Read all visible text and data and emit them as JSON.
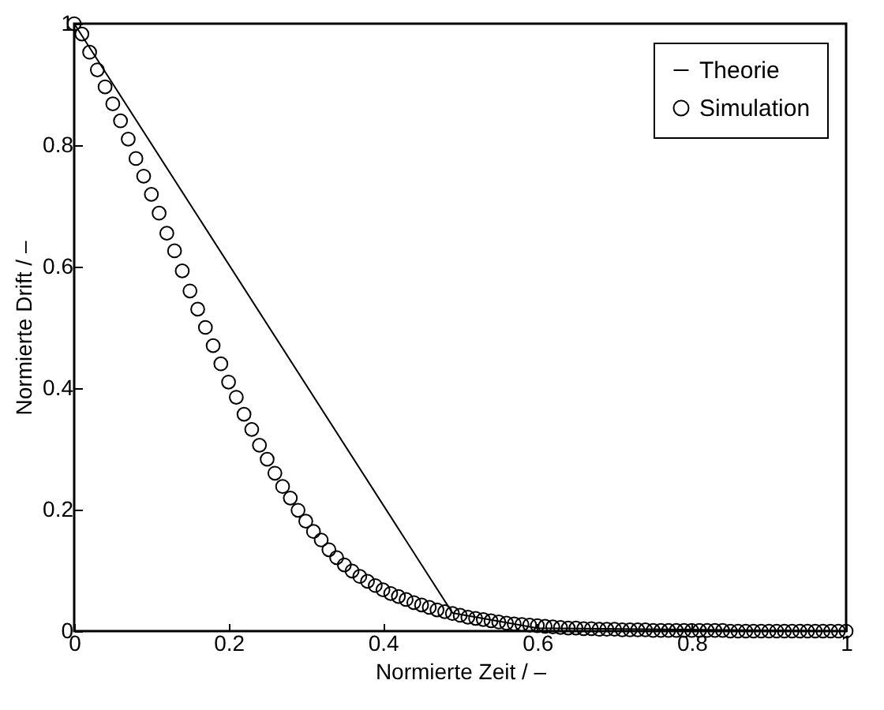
{
  "chart_data": {
    "type": "line",
    "xlabel": "Normierte Zeit / –",
    "ylabel": "Normierte Drift / –",
    "xlim": [
      0,
      1
    ],
    "ylim": [
      0,
      1
    ],
    "xticks": [
      0,
      0.2,
      0.4,
      0.6,
      0.8,
      1
    ],
    "yticks": [
      0,
      0.2,
      0.4,
      0.6,
      0.8,
      1
    ],
    "grid": false,
    "legend": "top right",
    "series": [
      {
        "name": "Theorie",
        "color": "#000000",
        "x": [
          0,
          0.49,
          0.6,
          1
        ],
        "values": [
          1,
          0.03,
          0.005,
          0
        ]
      },
      {
        "name": "Simulation",
        "type": "scatter",
        "marker": "circle",
        "color": "#000000",
        "x": [
          0,
          0.01,
          0.02,
          0.03,
          0.04,
          0.05,
          0.06,
          0.07,
          0.08,
          0.09,
          0.1,
          0.11,
          0.12,
          0.13,
          0.14,
          0.15,
          0.16,
          0.17,
          0.18,
          0.19,
          0.2,
          0.21,
          0.22,
          0.23,
          0.24,
          0.25,
          0.26,
          0.27,
          0.28,
          0.29,
          0.3,
          0.31,
          0.32,
          0.33,
          0.34,
          0.35,
          0.36,
          0.37,
          0.38,
          0.39,
          0.4,
          0.41,
          0.42,
          0.43,
          0.44,
          0.45,
          0.46,
          0.47,
          0.48,
          0.49,
          0.5,
          0.51,
          0.52,
          0.53,
          0.54,
          0.55,
          0.56,
          0.57,
          0.58,
          0.59,
          0.6,
          0.61,
          0.62,
          0.63,
          0.64,
          0.65,
          0.66,
          0.67,
          0.68,
          0.69,
          0.7,
          0.71,
          0.72,
          0.73,
          0.74,
          0.75,
          0.76,
          0.77,
          0.78,
          0.79,
          0.8,
          0.81,
          0.82,
          0.83,
          0.84,
          0.85,
          0.86,
          0.87,
          0.88,
          0.89,
          0.9,
          0.91,
          0.92,
          0.93,
          0.94,
          0.95,
          0.96,
          0.97,
          0.98,
          0.99,
          1
        ],
        "values": [
          1,
          0.983,
          0.953,
          0.924,
          0.896,
          0.868,
          0.84,
          0.81,
          0.778,
          0.749,
          0.719,
          0.688,
          0.655,
          0.626,
          0.593,
          0.56,
          0.53,
          0.5,
          0.47,
          0.44,
          0.41,
          0.385,
          0.357,
          0.332,
          0.306,
          0.283,
          0.26,
          0.238,
          0.219,
          0.199,
          0.181,
          0.164,
          0.15,
          0.134,
          0.121,
          0.109,
          0.099,
          0.09,
          0.082,
          0.075,
          0.068,
          0.062,
          0.057,
          0.052,
          0.047,
          0.043,
          0.039,
          0.035,
          0.032,
          0.029,
          0.026,
          0.023,
          0.021,
          0.019,
          0.017,
          0.015,
          0.013,
          0.012,
          0.011,
          0.01,
          0.009,
          0.008,
          0.007,
          0.006,
          0.005,
          0.005,
          0.004,
          0.004,
          0.003,
          0.003,
          0.003,
          0.002,
          0.002,
          0.002,
          0.002,
          0.001,
          0.001,
          0.001,
          0.001,
          0.001,
          0.001,
          0.001,
          0.001,
          0.001,
          0.001,
          0,
          0,
          0,
          0,
          0,
          0,
          0,
          0,
          0,
          0,
          0,
          0,
          0,
          0,
          0,
          0
        ]
      }
    ]
  }
}
